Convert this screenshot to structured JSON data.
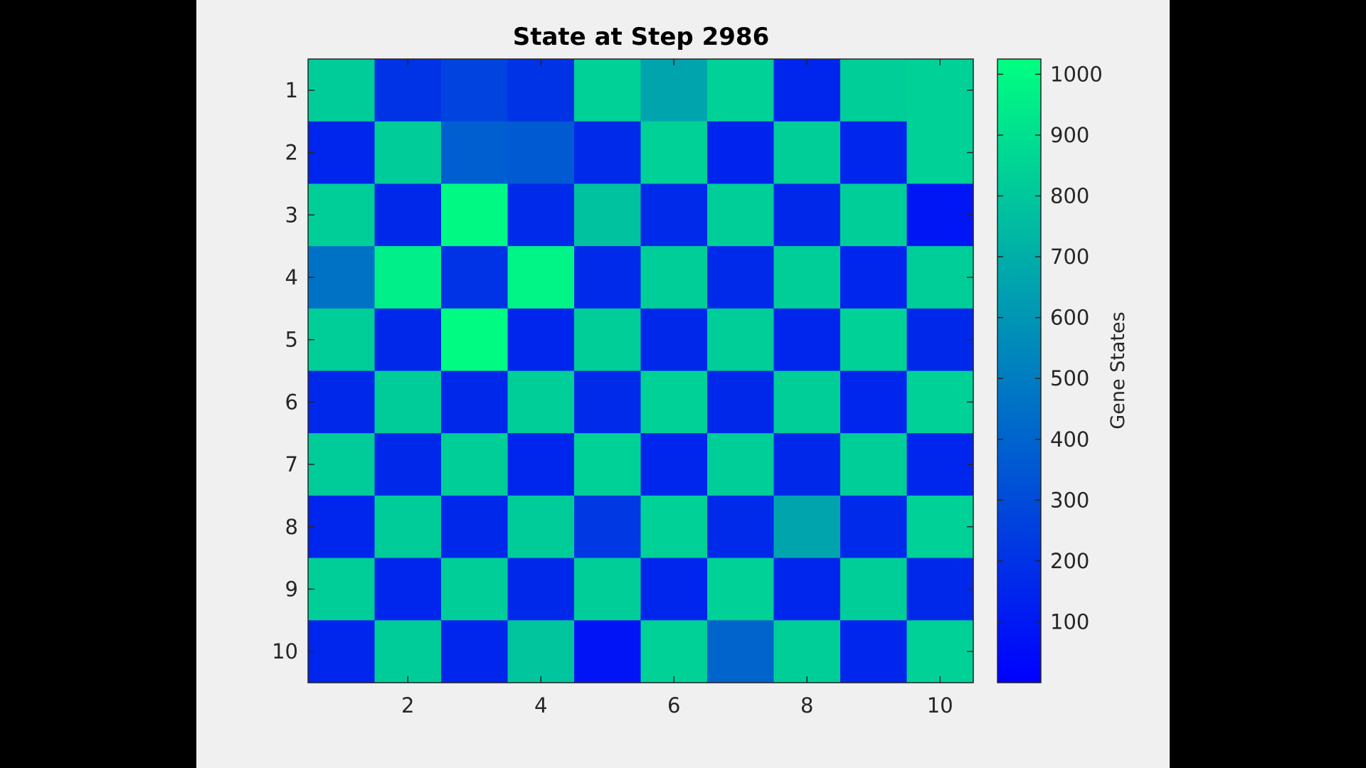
{
  "chart_data": {
    "type": "heatmap",
    "title": "State at Step 2986",
    "xlabel": "",
    "ylabel": "",
    "colorbar_label": "Gene States",
    "rows": [
      1,
      2,
      3,
      4,
      5,
      6,
      7,
      8,
      9,
      10
    ],
    "cols": [
      1,
      2,
      3,
      4,
      5,
      6,
      7,
      8,
      9,
      10
    ],
    "x_tick_labels": [
      "2",
      "4",
      "6",
      "8",
      "10"
    ],
    "y_tick_labels": [
      "1",
      "2",
      "3",
      "4",
      "5",
      "6",
      "7",
      "8",
      "9",
      "10"
    ],
    "colorbar_ticks": [
      "100",
      "200",
      "300",
      "400",
      "500",
      "600",
      "700",
      "800",
      "900",
      "1000"
    ],
    "clim": [
      0,
      1025
    ],
    "colormap": [
      "#0000ff",
      "#00ff80"
    ],
    "grid": false,
    "values": [
      [
        820,
        200,
        270,
        200,
        840,
        660,
        840,
        150,
        830,
        840
      ],
      [
        150,
        820,
        380,
        360,
        170,
        840,
        140,
        830,
        150,
        840
      ],
      [
        830,
        160,
        1000,
        170,
        780,
        170,
        830,
        160,
        830,
        90
      ],
      [
        460,
        960,
        200,
        980,
        170,
        830,
        170,
        830,
        150,
        830
      ],
      [
        830,
        160,
        1010,
        150,
        830,
        160,
        830,
        150,
        840,
        160
      ],
      [
        160,
        820,
        160,
        830,
        170,
        840,
        160,
        830,
        150,
        840
      ],
      [
        820,
        160,
        830,
        150,
        840,
        150,
        830,
        160,
        830,
        150
      ],
      [
        150,
        820,
        160,
        820,
        230,
        840,
        170,
        660,
        170,
        840
      ],
      [
        830,
        150,
        830,
        160,
        830,
        150,
        840,
        150,
        830,
        160
      ],
      [
        150,
        820,
        150,
        790,
        80,
        840,
        400,
        830,
        150,
        840
      ]
    ]
  }
}
